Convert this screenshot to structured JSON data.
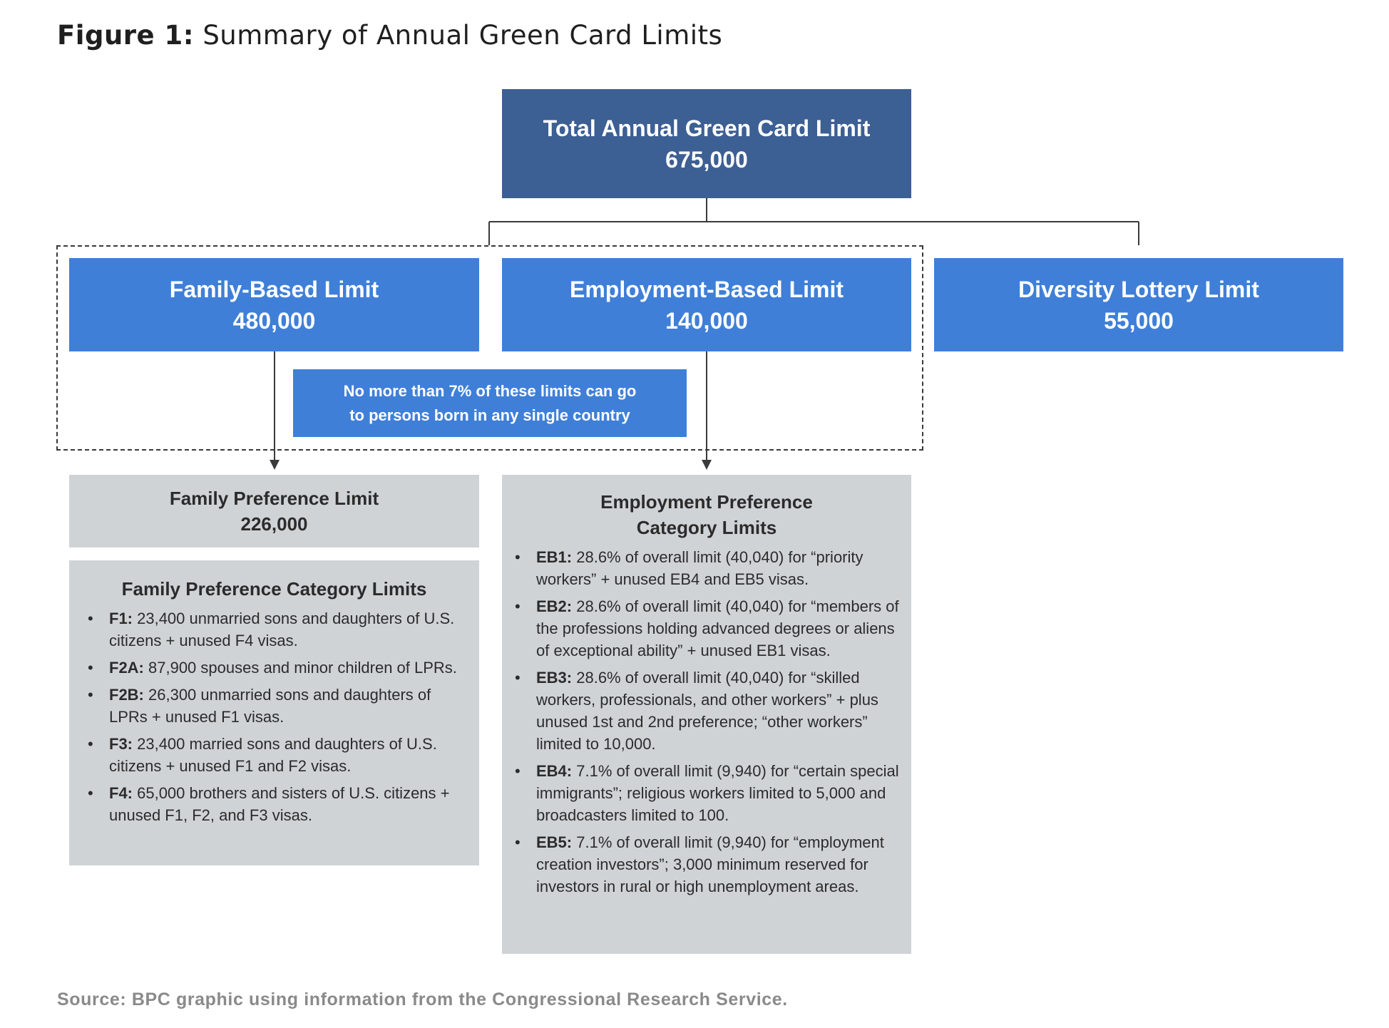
{
  "figure": {
    "title_prefix": "Figure 1:",
    "title": " Summary of Annual Green Card Limits"
  },
  "total": {
    "label": "Total Annual Green Card Limit",
    "value": "675,000"
  },
  "family_based": {
    "label": "Family-Based Limit",
    "value": "480,000"
  },
  "employment_based": {
    "label": "Employment-Based Limit",
    "value": "140,000"
  },
  "diversity": {
    "label": "Diversity Lottery Limit",
    "value": "55,000"
  },
  "note": {
    "line1": "No more than 7% of these limits can go",
    "line2": "to persons born in any single country"
  },
  "family_preference": {
    "label": "Family Preference Limit",
    "value": "226,000"
  },
  "family_categories": {
    "heading": "Family Preference Category Limits",
    "items": [
      {
        "code": "F1:",
        "text": " 23,400 unmarried sons and daughters of U.S. citizens + unused F4 visas."
      },
      {
        "code": "F2A:",
        "text": " 87,900 spouses and minor children of LPRs."
      },
      {
        "code": "F2B:",
        "text": " 26,300 unmarried sons and daughters of LPRs + unused F1 visas."
      },
      {
        "code": "F3:",
        "text": " 23,400 married sons and daughters of U.S. citizens + unused F1 and F2 visas."
      },
      {
        "code": "F4:",
        "text": " 65,000 brothers and sisters of U.S. citizens + unused F1, F2, and F3 visas."
      }
    ]
  },
  "employment_categories": {
    "heading_line1": "Employment Preference",
    "heading_line2": "Category Limits",
    "items": [
      {
        "code": "EB1:",
        "text": " 28.6% of overall limit (40,040) for “priority workers” + unused EB4 and EB5 visas."
      },
      {
        "code": "EB2:",
        "text": " 28.6% of overall limit (40,040) for “members of the professions holding advanced degrees or aliens of exceptional ability” + unused EB1 visas."
      },
      {
        "code": "EB3:",
        "text": " 28.6% of overall limit (40,040) for “skilled workers, professionals, and other workers” + plus unused 1st and 2nd preference; “other workers” limited to 10,000."
      },
      {
        "code": "EB4:",
        "text": " 7.1% of overall limit (9,940) for “certain special immigrants”; religious workers limited to 5,000 and broadcasters limited to 100."
      },
      {
        "code": "EB5:",
        "text": " 7.1% of overall limit (9,940) for “employment creation investors”; 3,000 minimum reserved for investors in rural or high unemployment areas."
      }
    ]
  },
  "source": {
    "label": "Source:",
    "text": " BPC graphic using information from the Congressional Research Service."
  },
  "colors": {
    "dark_blue": "#3c5f94",
    "blue": "#3f7fd8",
    "gray": "#d0d3d6",
    "line": "#3a3a3a"
  }
}
